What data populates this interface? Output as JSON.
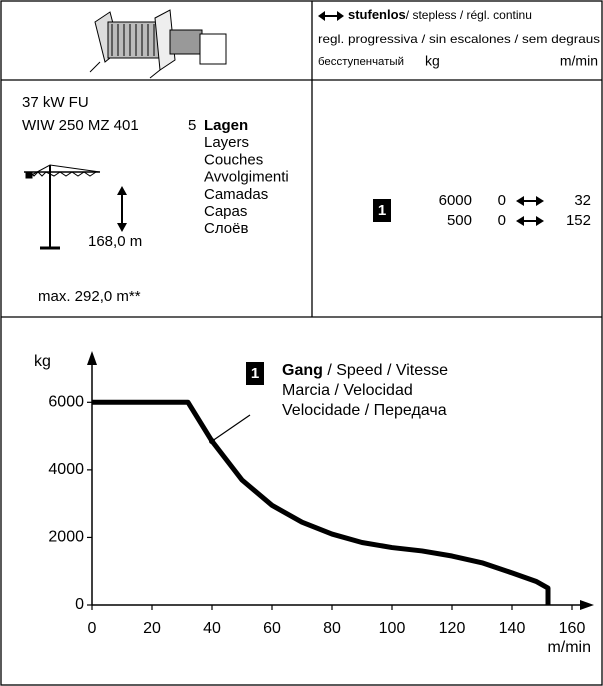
{
  "header": {
    "arrow_label": "stufenlos",
    "line1_rest": "/ stepless / régl. continu",
    "line2": "regl. progressiva / sin escalones / sem degraus",
    "line3": "бесступенчатый",
    "unit_kg": "kg",
    "unit_speed": "m/min"
  },
  "specs": {
    "power": "37 kW FU",
    "model": "WIW 250 MZ 401",
    "layers_count": "5",
    "layers": [
      "Lagen",
      "Layers",
      "Couches",
      "Avvolgimenti",
      "Camadas",
      "Capas",
      "Слоёв"
    ],
    "height": "168,0 m",
    "max": "max. 292,0 m**"
  },
  "speeds": {
    "gear": "1",
    "rows": [
      {
        "kg": 6000,
        "from": 0,
        "to": 32
      },
      {
        "kg": 500,
        "from": 0,
        "to": 152
      }
    ]
  },
  "chart_data": {
    "type": "line",
    "y_label": "kg",
    "x_label": "m/min",
    "xlim": [
      0,
      166
    ],
    "ylim": [
      0,
      7400
    ],
    "xticks": [
      0,
      20,
      40,
      60,
      80,
      100,
      120,
      140,
      160
    ],
    "yticks": [
      0,
      2000,
      4000,
      6000
    ],
    "color": "#000000",
    "x": [
      0,
      32,
      40,
      50,
      60,
      70,
      80,
      90,
      100,
      110,
      120,
      130,
      140,
      148,
      152,
      152
    ],
    "values": [
      6000,
      6000,
      4850,
      3700,
      2950,
      2450,
      2100,
      1850,
      1700,
      1600,
      1450,
      1250,
      950,
      700,
      500,
      0
    ],
    "annotation": {
      "gear": "1",
      "title": "Gang",
      "text1": " / Speed / Vitesse",
      "text2": "Marcia / Velocidad",
      "text3": "Velocidade / Передача",
      "x": 40,
      "y": 4850
    }
  }
}
